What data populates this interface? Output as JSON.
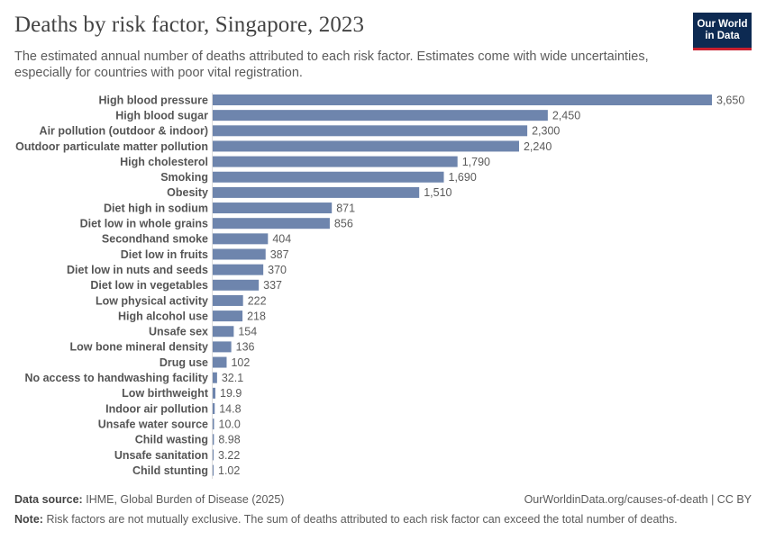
{
  "header": {
    "title": "Deaths by risk factor, Singapore, 2023",
    "subtitle": "The estimated annual number of deaths attributed to each risk factor. Estimates come with wide uncertainties, especially for countries with poor vital registration.",
    "logo_line1": "Our World",
    "logo_line2": "in Data"
  },
  "chart_data": {
    "type": "bar",
    "orientation": "horizontal",
    "title": "Deaths by risk factor, Singapore, 2023",
    "xlabel": "",
    "ylabel": "",
    "xlim": [
      0,
      3650
    ],
    "grid": false,
    "bar_color": "#6e85ad",
    "categories": [
      "High blood pressure",
      "High blood sugar",
      "Air pollution (outdoor & indoor)",
      "Outdoor particulate matter pollution",
      "High cholesterol",
      "Smoking",
      "Obesity",
      "Diet high in sodium",
      "Diet low in whole grains",
      "Secondhand smoke",
      "Diet low in fruits",
      "Diet low in nuts and seeds",
      "Diet low in vegetables",
      "Low physical activity",
      "High alcohol use",
      "Unsafe sex",
      "Low bone mineral density",
      "Drug use",
      "No access to handwashing facility",
      "Low birthweight",
      "Indoor air pollution",
      "Unsafe water source",
      "Child wasting",
      "Unsafe sanitation",
      "Child stunting"
    ],
    "values": [
      3650,
      2450,
      2300,
      2240,
      1790,
      1690,
      1510,
      871,
      856,
      404,
      387,
      370,
      337,
      222,
      218,
      154,
      136,
      102,
      32.1,
      19.9,
      14.8,
      10.0,
      8.98,
      3.22,
      1.02
    ],
    "value_labels": [
      "3,650",
      "2,450",
      "2,300",
      "2,240",
      "1,790",
      "1,690",
      "1,510",
      "871",
      "856",
      "404",
      "387",
      "370",
      "337",
      "222",
      "218",
      "154",
      "136",
      "102",
      "32.1",
      "19.9",
      "14.8",
      "10.0",
      "8.98",
      "3.22",
      "1.02"
    ]
  },
  "footer": {
    "source_label": "Data source:",
    "source_text": "IHME, Global Burden of Disease (2025)",
    "url_text": "OurWorldinData.org/causes-of-death | CC BY",
    "note_label": "Note:",
    "note_text": "Risk factors are not mutually exclusive. The sum of deaths attributed to each risk factor can exceed the total number of deaths."
  }
}
